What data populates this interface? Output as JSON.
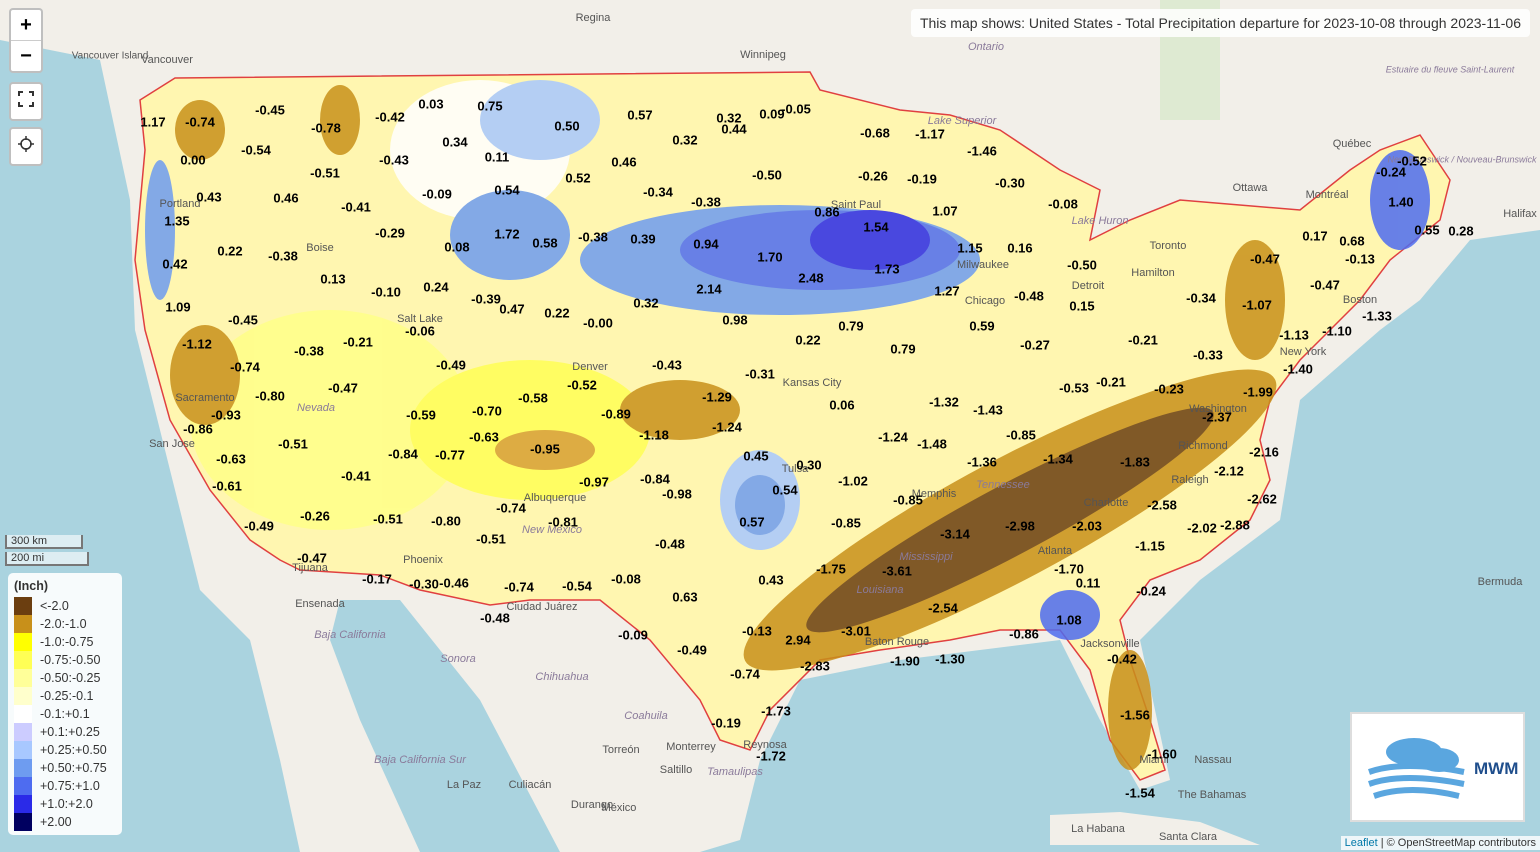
{
  "map_title": "This map shows: United States - Total Precipitation departure for 2023-10-08 through 2023-11-06",
  "controls": {
    "zoom_in": "+",
    "zoom_out": "−"
  },
  "scale": {
    "metric": "300 km",
    "imperial": "200 mi"
  },
  "legend": {
    "title": "(Inch)",
    "items": [
      {
        "label": "<-2.0",
        "color": "#6b3e10"
      },
      {
        "label": "-2.0:-1.0",
        "color": "#c8901a"
      },
      {
        "label": "-1.0:-0.75",
        "color": "#ffff00"
      },
      {
        "label": "-0.75:-0.50",
        "color": "#ffff55"
      },
      {
        "label": "-0.50:-0.25",
        "color": "#ffff99"
      },
      {
        "label": "-0.25:-0.1",
        "color": "#ffffcc"
      },
      {
        "label": "-0.1:+0.1",
        "color": "#ffffff"
      },
      {
        "label": "+0.1:+0.25",
        "color": "#ccccff"
      },
      {
        "label": "+0.25:+0.50",
        "color": "#a8c8ff"
      },
      {
        "label": "+0.50:+0.75",
        "color": "#6e9cf0"
      },
      {
        "label": "+0.75:+1.0",
        "color": "#4e6cf0"
      },
      {
        "label": "+1.0:+2.0",
        "color": "#2a2ae8"
      },
      {
        "label": "+2.00",
        "color": "#000060"
      }
    ]
  },
  "logo": "MWM",
  "attribution": {
    "leaflet": "Leaflet",
    "osm": "| © OpenStreetMap contributors"
  },
  "precip_labels": [
    "1.17",
    "-0.74",
    "-0.45",
    "0.00",
    "-0.54",
    "0.43",
    "0.46",
    "1.35",
    "0.22",
    "-0.38",
    "0.42",
    "1.09",
    "-0.45",
    "-1.12",
    "-0.74",
    "-0.93",
    "-0.86",
    "-0.80",
    "-0.51",
    "-0.63",
    "-0.61",
    "-0.49",
    "-0.26",
    "-0.47",
    "-0.17",
    "-0.78",
    "-0.42",
    "-0.43",
    "-0.51",
    "-0.41",
    "-0.29",
    "0.13",
    "-0.10",
    "0.03",
    "0.75",
    "0.34",
    "0.11",
    "-0.09",
    "0.54",
    "0.52",
    "0.50",
    "1.72",
    "0.58",
    "-0.38",
    "0.08",
    "0.24",
    "-0.39",
    "0.47",
    "0.22",
    "-0.00",
    "-0.06",
    "-0.21",
    "-0.38",
    "-0.47",
    "-0.49",
    "-0.59",
    "-0.84",
    "-0.77",
    "-0.63",
    "-0.70",
    "-0.58",
    "-0.52",
    "-0.95",
    "-0.89",
    "-1.18",
    "-0.43",
    "-1.29",
    "-0.31",
    "-1.24",
    "-0.41",
    "-0.51",
    "-0.80",
    "-0.74",
    "-0.97",
    "-0.81",
    "-0.51",
    "-0.30",
    "-0.46",
    "-0.74",
    "-0.54",
    "-0.48",
    "-0.84",
    "-0.98",
    "-0.48",
    "0.57",
    "0.54",
    "0.45",
    "0.30",
    "-0.08",
    "0.63",
    "-0.09",
    "-0.49",
    "-0.13",
    "0.43",
    "-0.74",
    "-0.19",
    "-1.73",
    "-1.72",
    "2.94",
    "-2.83",
    "-3.01",
    "-1.75",
    "-3.61",
    "-1.90",
    "-1.30",
    "-2.54",
    "-3.14",
    "-2.98",
    "-2.03",
    "-1.70",
    "0.11",
    "1.08",
    "-0.86",
    "-0.42",
    "-1.56",
    "-1.60",
    "-1.54",
    "-0.24",
    "-1.15",
    "-0.85",
    "-0.85",
    "-1.02",
    "-1.24",
    "-1.48",
    "-1.32",
    "-1.43",
    "-0.85",
    "-1.36",
    "-1.34",
    "-1.83",
    "-2.58",
    "-2.02",
    "-2.88",
    "-2.62",
    "-2.12",
    "-2.16",
    "-2.37",
    "-1.99",
    "-0.23",
    "-0.33",
    "-1.40",
    "-1.13",
    "-1.10",
    "-1.33",
    "-0.47",
    "-1.07",
    "-0.34",
    "-0.47",
    "0.17",
    "0.68",
    "1.40",
    "0.55",
    "0.28",
    "-0.13",
    "-0.24",
    "-0.52",
    "-0.21",
    "-0.21",
    "-0.53",
    "0.15",
    "-0.27",
    "0.59",
    "-0.48",
    "-0.50",
    "0.16",
    "-0.08",
    "-0.30",
    "1.15",
    "1.27",
    "1.07",
    "-0.19",
    "-0.26",
    "-1.17",
    "-1.46",
    "-0.68",
    "-0.05",
    "0.09",
    "0.32",
    "0.44",
    "0.57",
    "0.32",
    "0.46",
    "-0.50",
    "-0.34",
    "-0.38",
    "0.39",
    "0.94",
    "1.70",
    "0.86",
    "1.54",
    "1.73",
    "2.48",
    "2.14",
    "0.32",
    "0.98",
    "0.79",
    "0.22",
    "0.79",
    "0.06"
  ],
  "places": [
    "Regina",
    "Winnipeg",
    "Vancouver Island",
    "Vancouver",
    "Ontario",
    "Ottawa",
    "Montréal",
    "Québec",
    "Toronto",
    "Hamilton",
    "Halifax",
    "Bermuda",
    "Nassau",
    "The Bahamas",
    "La Habana",
    "Santa Clara",
    "Ensenada",
    "Tijuana",
    "Baja California",
    "Sonora",
    "Chihuahua",
    "Coahuila",
    "Torreón",
    "Monterrey",
    "Saltillo",
    "Tamaulipas",
    "Reynosa",
    "La Paz",
    "Culiacán",
    "Durango",
    "México",
    "Ciudad Juárez",
    "Baja California Sur",
    "Lake Superior",
    "Lake Huron",
    "Portland",
    "Sacramento",
    "San Jose",
    "Boise",
    "Salt Lake",
    "Nevada",
    "Phoenix",
    "Albuquerque",
    "New Mexico",
    "Denver",
    "Kansas City",
    "Tulsa",
    "Memphis",
    "Saint Paul",
    "Milwaukee",
    "Chicago",
    "Detroit",
    "New York",
    "Boston",
    "Washington",
    "Richmond",
    "Raleigh",
    "Charlotte",
    "Atlanta",
    "Jacksonville",
    "Miami",
    "Baton Rouge",
    "Tennessee",
    "Mississippi",
    "Louisiana",
    "Estuaire du fleuve Saint-Laurent",
    "New Brunswick / Nouveau-Brunswick"
  ]
}
